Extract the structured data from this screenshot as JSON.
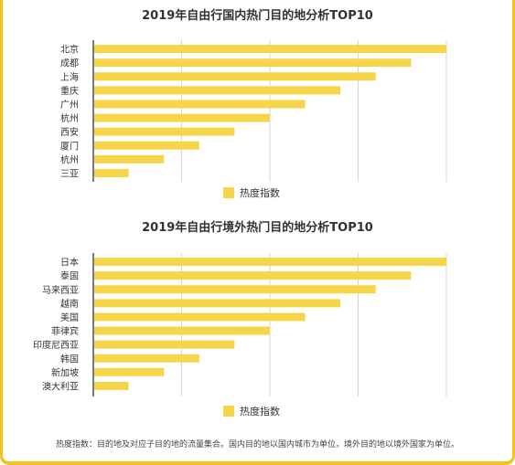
{
  "colors": {
    "bar": "#f5d64a",
    "grid": "#d4d4d4",
    "axis": "#222222",
    "frame": "#f5c21b"
  },
  "chart_data": [
    {
      "type": "bar",
      "orientation": "horizontal",
      "title": "2019年自由行国内热门目的地分析TOP10",
      "categories": [
        "北京",
        "成都",
        "上海",
        "重庆",
        "广州",
        "杭州",
        "西安",
        "厦门",
        "杭州",
        "三亚"
      ],
      "series": [
        {
          "name": "热度指数",
          "values": [
            100,
            90,
            80,
            70,
            60,
            50,
            40,
            30,
            20,
            10
          ]
        }
      ],
      "xlim": [
        0,
        100
      ],
      "grid": true,
      "legend": "bottom"
    },
    {
      "type": "bar",
      "orientation": "horizontal",
      "title": "2019年自由行境外热门目的地分析TOP10",
      "categories": [
        "日本",
        "泰国",
        "马来西亚",
        "越南",
        "美国",
        "菲律宾",
        "印度尼西亚",
        "韩国",
        "新加坡",
        "澳大利亚"
      ],
      "series": [
        {
          "name": "热度指数",
          "values": [
            100,
            90,
            80,
            70,
            60,
            50,
            40,
            30,
            20,
            10
          ]
        }
      ],
      "xlim": [
        0,
        100
      ],
      "grid": true,
      "legend": "bottom"
    }
  ],
  "footnote": "热度指数：目的地及对应子目的地的流量集合。国内目的地以国内城市为单位，境外目的地以境外国家为单位。"
}
